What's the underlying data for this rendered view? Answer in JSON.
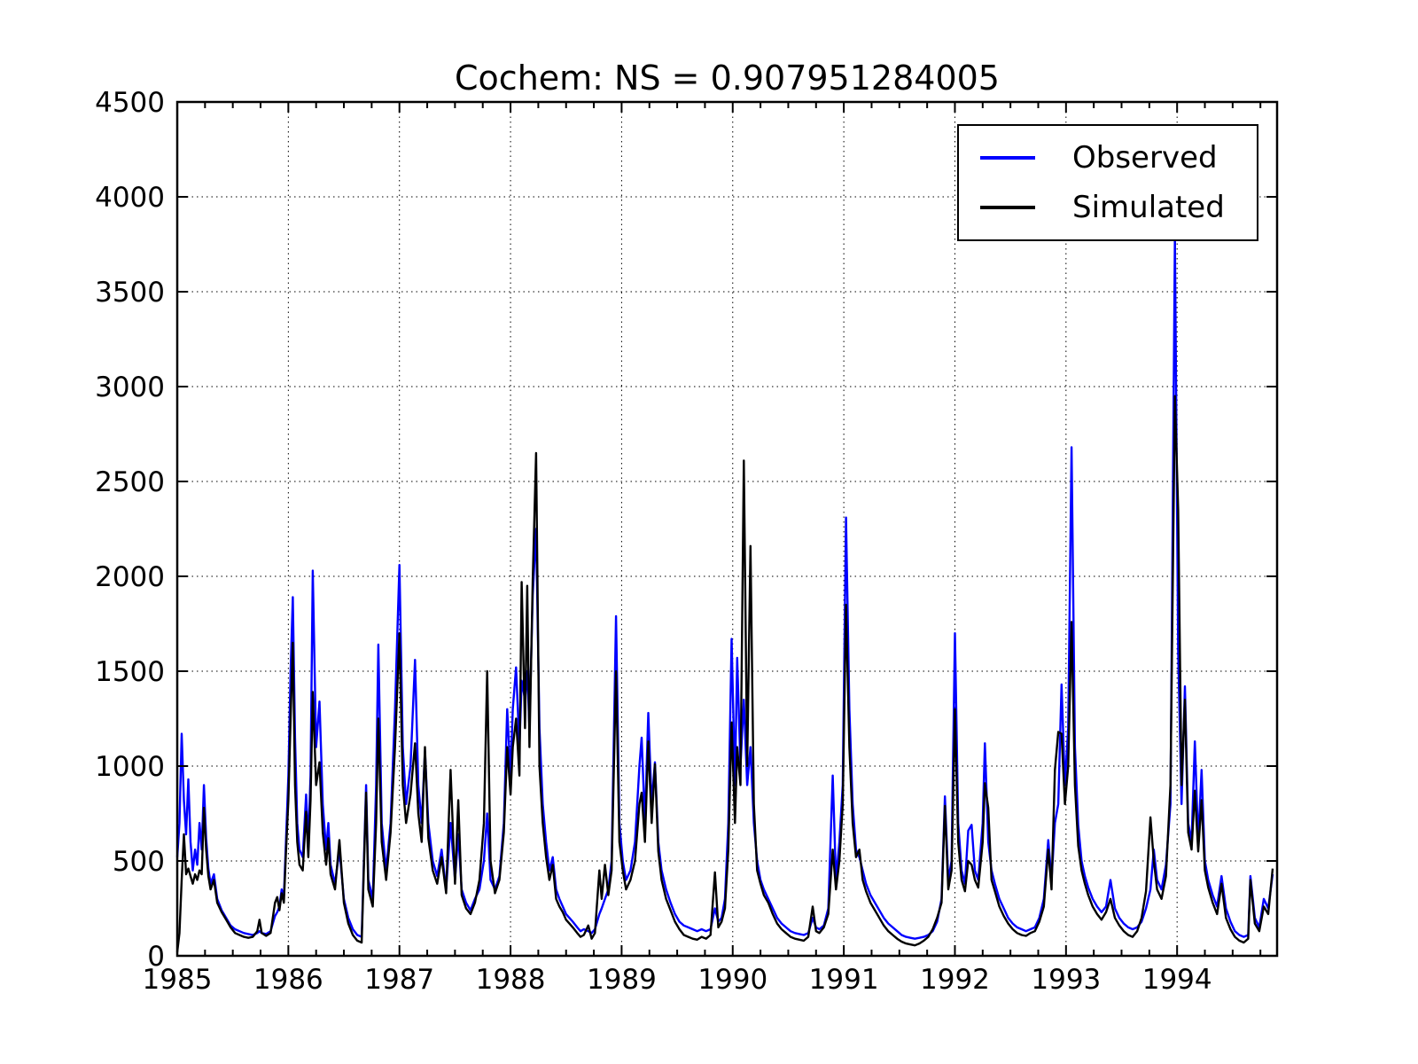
{
  "title": "Cochem: NS = 0.907951284005",
  "legend": [
    {
      "label": "Observed",
      "color": "#0000ff"
    },
    {
      "label": "Simulated",
      "color": "#000000"
    }
  ],
  "axes": {
    "x_range": [
      1985,
      1994.9
    ],
    "y_range": [
      0,
      4500
    ],
    "x_ticks": [
      1985,
      1986,
      1987,
      1988,
      1989,
      1990,
      1991,
      1992,
      1993,
      1994
    ],
    "x_tick_labels": [
      "1985",
      "1986",
      "1987",
      "1988",
      "1989",
      "1990",
      "1991",
      "1992",
      "1993",
      "1994"
    ],
    "x_minor_step": 0.25,
    "y_ticks": [
      0,
      500,
      1000,
      1500,
      2000,
      2500,
      3000,
      3500,
      4000,
      4500
    ],
    "y_tick_labels": [
      "0",
      "500",
      "1000",
      "1500",
      "2000",
      "2500",
      "3000",
      "3500",
      "4000",
      "4500"
    ],
    "grid": true
  },
  "chart_data": {
    "type": "line",
    "title": "Cochem: NS = 0.907951284005",
    "xlabel": "",
    "ylabel": "",
    "xlim": [
      1985,
      1994.9
    ],
    "ylim": [
      0,
      4500
    ],
    "grid": true,
    "legend_position": "upper right",
    "columns": [
      "year_decimal",
      "Observed",
      "Simulated"
    ],
    "series": [
      {
        "name": "Observed",
        "color": "#0000ff",
        "column": 1
      },
      {
        "name": "Simulated",
        "color": "#000000",
        "column": 2
      }
    ],
    "points": [
      [
        1985.0,
        520,
        20
      ],
      [
        1985.02,
        700,
        120
      ],
      [
        1985.04,
        1170,
        400
      ],
      [
        1985.06,
        820,
        640
      ],
      [
        1985.08,
        640,
        430
      ],
      [
        1985.1,
        930,
        460
      ],
      [
        1985.12,
        600,
        420
      ],
      [
        1985.14,
        450,
        380
      ],
      [
        1985.16,
        560,
        430
      ],
      [
        1985.18,
        480,
        400
      ],
      [
        1985.2,
        700,
        450
      ],
      [
        1985.22,
        560,
        430
      ],
      [
        1985.24,
        900,
        780
      ],
      [
        1985.26,
        620,
        560
      ],
      [
        1985.28,
        460,
        420
      ],
      [
        1985.3,
        380,
        350
      ],
      [
        1985.33,
        430,
        400
      ],
      [
        1985.36,
        300,
        280
      ],
      [
        1985.4,
        240,
        230
      ],
      [
        1985.44,
        200,
        190
      ],
      [
        1985.48,
        160,
        150
      ],
      [
        1985.52,
        140,
        120
      ],
      [
        1985.56,
        130,
        110
      ],
      [
        1985.6,
        120,
        100
      ],
      [
        1985.64,
        115,
        95
      ],
      [
        1985.68,
        110,
        100
      ],
      [
        1985.72,
        120,
        130
      ],
      [
        1985.74,
        130,
        190
      ],
      [
        1985.76,
        120,
        120
      ],
      [
        1985.8,
        115,
        105
      ],
      [
        1985.84,
        130,
        120
      ],
      [
        1985.88,
        210,
        280
      ],
      [
        1985.9,
        230,
        310
      ],
      [
        1985.92,
        260,
        240
      ],
      [
        1985.94,
        350,
        330
      ],
      [
        1985.96,
        310,
        280
      ],
      [
        1985.98,
        620,
        560
      ],
      [
        1986.0,
        950,
        820
      ],
      [
        1986.02,
        1500,
        1250
      ],
      [
        1986.04,
        1890,
        1650
      ],
      [
        1986.06,
        1150,
        900
      ],
      [
        1986.08,
        700,
        600
      ],
      [
        1986.1,
        560,
        480
      ],
      [
        1986.13,
        520,
        450
      ],
      [
        1986.16,
        850,
        760
      ],
      [
        1986.18,
        600,
        520
      ],
      [
        1986.2,
        950,
        820
      ],
      [
        1986.22,
        2030,
        1390
      ],
      [
        1986.25,
        1100,
        900
      ],
      [
        1986.28,
        1340,
        1020
      ],
      [
        1986.31,
        800,
        650
      ],
      [
        1986.34,
        560,
        480
      ],
      [
        1986.36,
        700,
        620
      ],
      [
        1986.38,
        480,
        430
      ],
      [
        1986.42,
        380,
        350
      ],
      [
        1986.46,
        560,
        610
      ],
      [
        1986.5,
        300,
        280
      ],
      [
        1986.54,
        200,
        170
      ],
      [
        1986.58,
        140,
        110
      ],
      [
        1986.62,
        110,
        80
      ],
      [
        1986.66,
        100,
        70
      ],
      [
        1986.7,
        900,
        860
      ],
      [
        1986.72,
        400,
        350
      ],
      [
        1986.76,
        300,
        260
      ],
      [
        1986.79,
        900,
        700
      ],
      [
        1986.81,
        1640,
        1250
      ],
      [
        1986.84,
        700,
        600
      ],
      [
        1986.88,
        450,
        400
      ],
      [
        1986.92,
        700,
        650
      ],
      [
        1986.96,
        1300,
        1100
      ],
      [
        1987.0,
        2060,
        1700
      ],
      [
        1987.03,
        1100,
        900
      ],
      [
        1987.06,
        800,
        700
      ],
      [
        1987.1,
        1000,
        850
      ],
      [
        1987.14,
        1560,
        1120
      ],
      [
        1987.17,
        900,
        750
      ],
      [
        1987.2,
        700,
        600
      ],
      [
        1987.23,
        1080,
        1100
      ],
      [
        1987.26,
        700,
        620
      ],
      [
        1987.3,
        500,
        450
      ],
      [
        1987.34,
        420,
        380
      ],
      [
        1987.38,
        560,
        520
      ],
      [
        1987.42,
        350,
        330
      ],
      [
        1987.46,
        700,
        980
      ],
      [
        1987.5,
        400,
        380
      ],
      [
        1987.53,
        640,
        820
      ],
      [
        1987.56,
        350,
        320
      ],
      [
        1987.6,
        280,
        250
      ],
      [
        1987.64,
        240,
        220
      ],
      [
        1987.68,
        300,
        280
      ],
      [
        1987.72,
        350,
        400
      ],
      [
        1987.76,
        500,
        700
      ],
      [
        1987.79,
        750,
        1500
      ],
      [
        1987.82,
        400,
        500
      ],
      [
        1987.86,
        350,
        330
      ],
      [
        1987.9,
        420,
        400
      ],
      [
        1987.94,
        700,
        650
      ],
      [
        1987.97,
        1300,
        1100
      ],
      [
        1988.0,
        950,
        850
      ],
      [
        1988.02,
        1300,
        1100
      ],
      [
        1988.05,
        1520,
        1250
      ],
      [
        1988.08,
        1100,
        950
      ],
      [
        1988.1,
        1450,
        1970
      ],
      [
        1988.13,
        1350,
        1200
      ],
      [
        1988.15,
        1500,
        1950
      ],
      [
        1988.17,
        1200,
        1100
      ],
      [
        1988.2,
        1900,
        1980
      ],
      [
        1988.23,
        2250,
        2650
      ],
      [
        1988.26,
        1200,
        1000
      ],
      [
        1988.29,
        800,
        700
      ],
      [
        1988.32,
        600,
        520
      ],
      [
        1988.35,
        450,
        400
      ],
      [
        1988.38,
        520,
        480
      ],
      [
        1988.41,
        350,
        300
      ],
      [
        1988.44,
        300,
        260
      ],
      [
        1988.47,
        260,
        230
      ],
      [
        1988.5,
        220,
        190
      ],
      [
        1988.53,
        200,
        170
      ],
      [
        1988.56,
        180,
        150
      ],
      [
        1988.6,
        150,
        120
      ],
      [
        1988.63,
        130,
        100
      ],
      [
        1988.66,
        140,
        110
      ],
      [
        1988.7,
        130,
        160
      ],
      [
        1988.73,
        120,
        90
      ],
      [
        1988.76,
        140,
        120
      ],
      [
        1988.8,
        220,
        450
      ],
      [
        1988.82,
        250,
        300
      ],
      [
        1988.85,
        300,
        480
      ],
      [
        1988.88,
        350,
        320
      ],
      [
        1988.91,
        500,
        450
      ],
      [
        1988.95,
        1790,
        1500
      ],
      [
        1988.98,
        700,
        600
      ],
      [
        1989.01,
        500,
        450
      ],
      [
        1989.04,
        400,
        350
      ],
      [
        1989.08,
        450,
        400
      ],
      [
        1989.12,
        600,
        500
      ],
      [
        1989.16,
        1000,
        800
      ],
      [
        1989.18,
        1150,
        860
      ],
      [
        1989.21,
        700,
        600
      ],
      [
        1989.24,
        1280,
        1130
      ],
      [
        1989.27,
        800,
        700
      ],
      [
        1989.3,
        1020,
        1010
      ],
      [
        1989.33,
        600,
        550
      ],
      [
        1989.36,
        450,
        400
      ],
      [
        1989.4,
        350,
        300
      ],
      [
        1989.44,
        280,
        240
      ],
      [
        1989.48,
        220,
        180
      ],
      [
        1989.52,
        180,
        140
      ],
      [
        1989.56,
        160,
        110
      ],
      [
        1989.6,
        150,
        100
      ],
      [
        1989.64,
        140,
        90
      ],
      [
        1989.68,
        130,
        85
      ],
      [
        1989.72,
        140,
        100
      ],
      [
        1989.76,
        130,
        90
      ],
      [
        1989.8,
        140,
        110
      ],
      [
        1989.84,
        250,
        440
      ],
      [
        1989.87,
        180,
        150
      ],
      [
        1989.9,
        200,
        180
      ],
      [
        1989.93,
        300,
        250
      ],
      [
        1989.96,
        700,
        560
      ],
      [
        1989.99,
        1670,
        1230
      ],
      [
        1990.02,
        900,
        700
      ],
      [
        1990.04,
        1570,
        1100
      ],
      [
        1990.07,
        1000,
        900
      ],
      [
        1990.1,
        1350,
        2610
      ],
      [
        1990.13,
        900,
        1000
      ],
      [
        1990.16,
        1100,
        2160
      ],
      [
        1990.19,
        700,
        800
      ],
      [
        1990.22,
        500,
        450
      ],
      [
        1990.25,
        400,
        380
      ],
      [
        1990.28,
        350,
        320
      ],
      [
        1990.32,
        300,
        280
      ],
      [
        1990.36,
        250,
        220
      ],
      [
        1990.4,
        200,
        170
      ],
      [
        1990.44,
        170,
        140
      ],
      [
        1990.48,
        150,
        120
      ],
      [
        1990.52,
        130,
        100
      ],
      [
        1990.56,
        120,
        90
      ],
      [
        1990.6,
        115,
        85
      ],
      [
        1990.64,
        110,
        80
      ],
      [
        1990.68,
        120,
        100
      ],
      [
        1990.72,
        200,
        260
      ],
      [
        1990.75,
        150,
        130
      ],
      [
        1990.78,
        140,
        120
      ],
      [
        1990.82,
        160,
        150
      ],
      [
        1990.86,
        250,
        220
      ],
      [
        1990.9,
        950,
        560
      ],
      [
        1990.93,
        400,
        350
      ],
      [
        1990.96,
        600,
        500
      ],
      [
        1990.99,
        900,
        800
      ],
      [
        1991.02,
        2310,
        1850
      ],
      [
        1991.05,
        1300,
        1100
      ],
      [
        1991.08,
        800,
        700
      ],
      [
        1991.11,
        560,
        520
      ],
      [
        1991.14,
        520,
        560
      ],
      [
        1991.17,
        450,
        400
      ],
      [
        1991.2,
        380,
        340
      ],
      [
        1991.24,
        320,
        280
      ],
      [
        1991.28,
        280,
        240
      ],
      [
        1991.32,
        240,
        200
      ],
      [
        1991.36,
        200,
        160
      ],
      [
        1991.4,
        170,
        130
      ],
      [
        1991.44,
        150,
        110
      ],
      [
        1991.48,
        130,
        90
      ],
      [
        1991.52,
        110,
        75
      ],
      [
        1991.56,
        100,
        65
      ],
      [
        1991.6,
        95,
        60
      ],
      [
        1991.64,
        90,
        55
      ],
      [
        1991.68,
        95,
        65
      ],
      [
        1991.72,
        100,
        80
      ],
      [
        1991.76,
        110,
        100
      ],
      [
        1991.8,
        130,
        140
      ],
      [
        1991.84,
        180,
        200
      ],
      [
        1991.88,
        300,
        280
      ],
      [
        1991.91,
        840,
        790
      ],
      [
        1991.94,
        400,
        350
      ],
      [
        1991.97,
        500,
        450
      ],
      [
        1992.0,
        1700,
        1300
      ],
      [
        1992.03,
        700,
        600
      ],
      [
        1992.06,
        450,
        400
      ],
      [
        1992.09,
        380,
        340
      ],
      [
        1992.12,
        660,
        500
      ],
      [
        1992.15,
        690,
        480
      ],
      [
        1992.18,
        450,
        400
      ],
      [
        1992.21,
        400,
        360
      ],
      [
        1992.25,
        700,
        600
      ],
      [
        1992.27,
        1120,
        910
      ],
      [
        1992.3,
        600,
        780
      ],
      [
        1992.33,
        450,
        400
      ],
      [
        1992.36,
        380,
        340
      ],
      [
        1992.4,
        300,
        260
      ],
      [
        1992.44,
        250,
        210
      ],
      [
        1992.48,
        200,
        170
      ],
      [
        1992.52,
        170,
        140
      ],
      [
        1992.56,
        150,
        120
      ],
      [
        1992.6,
        140,
        110
      ],
      [
        1992.64,
        130,
        105
      ],
      [
        1992.68,
        140,
        120
      ],
      [
        1992.72,
        150,
        130
      ],
      [
        1992.76,
        200,
        180
      ],
      [
        1992.8,
        300,
        260
      ],
      [
        1992.84,
        610,
        560
      ],
      [
        1992.87,
        400,
        350
      ],
      [
        1992.9,
        700,
        980
      ],
      [
        1992.93,
        800,
        1180
      ],
      [
        1992.96,
        1430,
        1170
      ],
      [
        1992.99,
        900,
        800
      ],
      [
        1993.02,
        1200,
        1000
      ],
      [
        1993.05,
        2680,
        1760
      ],
      [
        1993.08,
        1100,
        900
      ],
      [
        1993.11,
        690,
        580
      ],
      [
        1993.14,
        500,
        450
      ],
      [
        1993.17,
        420,
        380
      ],
      [
        1993.2,
        360,
        320
      ],
      [
        1993.24,
        300,
        260
      ],
      [
        1993.28,
        260,
        220
      ],
      [
        1993.32,
        230,
        190
      ],
      [
        1993.36,
        260,
        230
      ],
      [
        1993.4,
        400,
        300
      ],
      [
        1993.44,
        250,
        200
      ],
      [
        1993.48,
        200,
        160
      ],
      [
        1993.52,
        170,
        130
      ],
      [
        1993.56,
        150,
        110
      ],
      [
        1993.6,
        140,
        100
      ],
      [
        1993.64,
        150,
        130
      ],
      [
        1993.68,
        180,
        200
      ],
      [
        1993.72,
        250,
        340
      ],
      [
        1993.76,
        350,
        730
      ],
      [
        1993.79,
        560,
        500
      ],
      [
        1993.82,
        400,
        350
      ],
      [
        1993.86,
        350,
        300
      ],
      [
        1993.9,
        480,
        420
      ],
      [
        1993.94,
        800,
        900
      ],
      [
        1993.98,
        3790,
        2950
      ],
      [
        1994.01,
        1600,
        2350
      ],
      [
        1994.04,
        800,
        900
      ],
      [
        1994.07,
        1420,
        1350
      ],
      [
        1994.1,
        700,
        650
      ],
      [
        1994.13,
        600,
        560
      ],
      [
        1994.16,
        1130,
        870
      ],
      [
        1994.19,
        600,
        550
      ],
      [
        1994.22,
        980,
        820
      ],
      [
        1994.25,
        500,
        450
      ],
      [
        1994.28,
        400,
        360
      ],
      [
        1994.32,
        320,
        280
      ],
      [
        1994.36,
        260,
        220
      ],
      [
        1994.4,
        420,
        380
      ],
      [
        1994.44,
        250,
        200
      ],
      [
        1994.48,
        180,
        140
      ],
      [
        1994.52,
        130,
        100
      ],
      [
        1994.56,
        110,
        80
      ],
      [
        1994.6,
        100,
        70
      ],
      [
        1994.64,
        110,
        90
      ],
      [
        1994.66,
        420,
        400
      ],
      [
        1994.7,
        200,
        170
      ],
      [
        1994.74,
        150,
        130
      ],
      [
        1994.78,
        300,
        260
      ],
      [
        1994.82,
        250,
        220
      ],
      [
        1994.86,
        430,
        460
      ]
    ]
  }
}
